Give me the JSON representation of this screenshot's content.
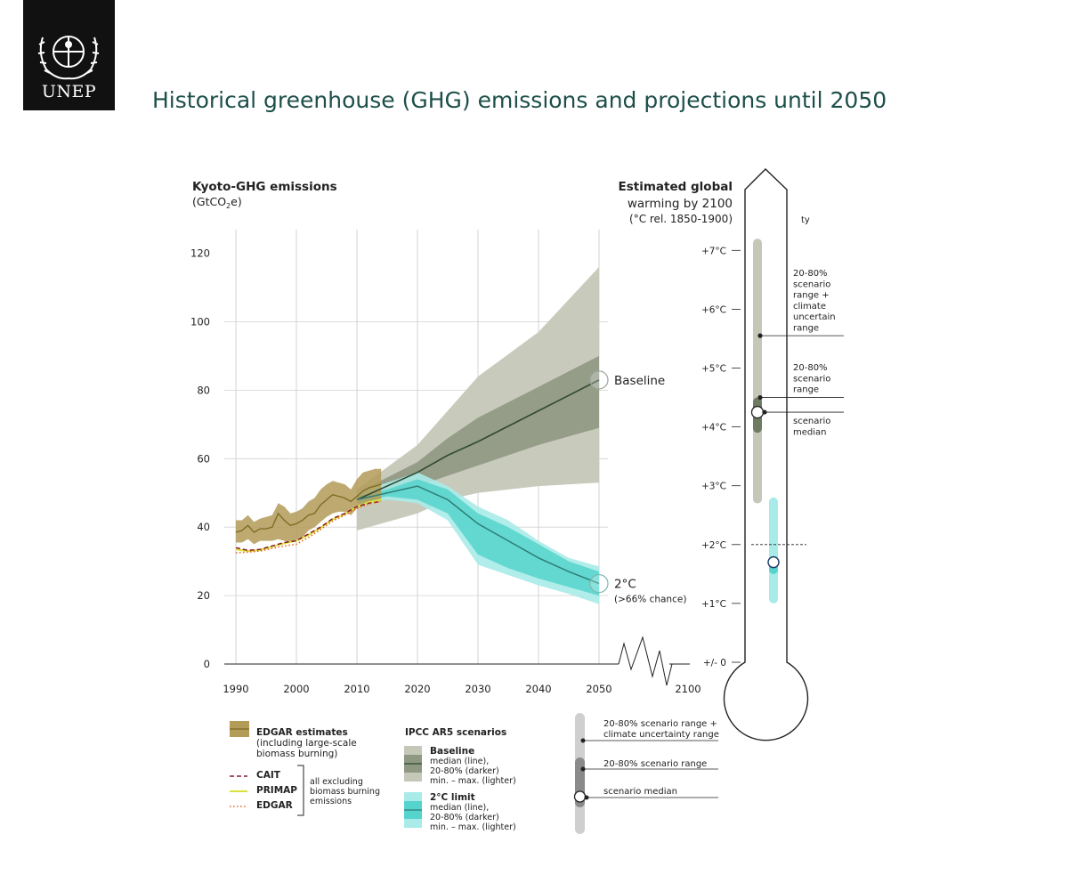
{
  "brand": {
    "logo_text": "UNEP"
  },
  "title": "Historical greenhouse (GHG) emissions and projections until 2050",
  "colors": {
    "title": "#1d4f4a",
    "edgar_band": "#b39b58",
    "edgar_line": "#7a6a22",
    "baseline_light": "#c5c8b8",
    "baseline_dark": "#8f9882",
    "baseline_line": "#2f4a33",
    "limit_light": "#a8ebe8",
    "limit_dark": "#55d3cd",
    "limit_line": "#2e7d74",
    "cait": "#8b1a2b",
    "primap": "#d8e23a",
    "edgar_dotted": "#e3671c"
  },
  "chart_data": {
    "type": "line",
    "ylabel": "Kyoto-GHG emissions",
    "yunit_prefix": "(GtCO",
    "yunit_sub": "2",
    "yunit_suffix": "e)",
    "ylim": [
      0,
      127
    ],
    "yticks": [
      0,
      20,
      40,
      60,
      80,
      100,
      120
    ],
    "xticks": [
      "1990",
      "2000",
      "2010",
      "2020",
      "2030",
      "2040",
      "2050",
      "2100"
    ],
    "xlim": [
      1990,
      2050
    ],
    "series": [
      {
        "name": "EDGAR estimates (including large-scale biomass burning)",
        "type": "band_with_line",
        "x": [
          1990,
          1991,
          1992,
          1993,
          1994,
          1995,
          1996,
          1997,
          1998,
          1999,
          2000,
          2001,
          2002,
          2003,
          2004,
          2005,
          2006,
          2007,
          2008,
          2009,
          2010,
          2011,
          2012,
          2013,
          2014
        ],
        "median": [
          38.5,
          39.0,
          40.5,
          38.5,
          39.5,
          39.5,
          40.0,
          44.0,
          42.0,
          40.5,
          41.0,
          42.0,
          43.5,
          44.0,
          46.5,
          48.0,
          49.5,
          49.0,
          48.5,
          47.5,
          49.0,
          50.5,
          51.5,
          52.0,
          52.5
        ],
        "low": [
          35.5,
          35.5,
          36.5,
          35.0,
          36.0,
          36.0,
          36.0,
          36.5,
          36.0,
          35.5,
          36.0,
          37.0,
          39.0,
          40.0,
          41.5,
          43.0,
          44.0,
          44.5,
          44.5,
          43.5,
          45.5,
          46.5,
          47.0,
          47.5,
          47.5
        ],
        "high": [
          42.0,
          42.0,
          43.5,
          41.5,
          42.5,
          43.0,
          43.5,
          47.0,
          46.0,
          44.0,
          44.5,
          45.5,
          47.5,
          48.5,
          51.0,
          52.5,
          53.5,
          53.0,
          52.5,
          51.0,
          54.0,
          56.0,
          56.5,
          57.0,
          57.0
        ]
      },
      {
        "name": "CAIT",
        "type": "dashed",
        "x": [
          1990,
          1992,
          1994,
          1996,
          1998,
          2000,
          2002,
          2004,
          2006,
          2008,
          2010,
          2012,
          2014
        ],
        "values": [
          34.0,
          33.2,
          33.5,
          34.5,
          35.5,
          36.0,
          38.0,
          40.0,
          42.5,
          44.0,
          46.0,
          47.0,
          47.5
        ]
      },
      {
        "name": "PRIMAP",
        "type": "solid",
        "x": [
          1990,
          1992,
          1994,
          1996,
          1998,
          2000,
          2002,
          2004,
          2006,
          2008,
          2010,
          2012,
          2014
        ],
        "values": [
          33.5,
          33.0,
          33.3,
          34.3,
          35.3,
          36.0,
          37.7,
          39.8,
          42.3,
          43.8,
          46.0,
          47.3,
          48.0
        ]
      },
      {
        "name": "EDGAR",
        "type": "dotted",
        "x": [
          1990,
          1992,
          1994,
          1996,
          1998,
          2000,
          2002,
          2004,
          2006,
          2008,
          2010,
          2012,
          2014
        ],
        "values": [
          32.5,
          32.7,
          33.0,
          33.8,
          34.5,
          35.0,
          37.0,
          39.3,
          41.8,
          43.5,
          45.5,
          46.8,
          47.5
        ]
      },
      {
        "name": "Baseline",
        "type": "scenario",
        "x": [
          2010,
          2020,
          2025,
          2030,
          2040,
          2050
        ],
        "median": [
          48,
          56,
          61,
          65,
          74,
          83
        ],
        "dark_low": [
          47,
          52,
          55,
          58,
          64,
          69
        ],
        "dark_high": [
          50,
          59,
          66,
          72,
          81,
          90
        ],
        "light_low": [
          39,
          44,
          48,
          50,
          52,
          53
        ],
        "light_high": [
          51,
          64,
          74,
          84,
          97,
          116
        ]
      },
      {
        "name": "2°C limit",
        "type": "scenario",
        "x": [
          2010,
          2015,
          2020,
          2025,
          2030,
          2035,
          2040,
          2045,
          2050
        ],
        "median": [
          48,
          50,
          52,
          48,
          41,
          36,
          31,
          27,
          23.5
        ],
        "dark_low": [
          47,
          49,
          48,
          44,
          32,
          28,
          25,
          22.5,
          20
        ],
        "dark_high": [
          49,
          51,
          54,
          51,
          44,
          40,
          35,
          30,
          27
        ],
        "light_low": [
          46,
          48,
          47,
          42,
          29,
          26,
          23,
          20.5,
          17.5
        ],
        "light_high": [
          50,
          53,
          56,
          52,
          46,
          42,
          36,
          31,
          28.5
        ]
      }
    ],
    "end_labels": [
      {
        "label": "Baseline",
        "value": 83
      },
      {
        "label": "2°C",
        "sublabel": "(>66% chance)",
        "value": 23.5
      }
    ]
  },
  "thermometer": {
    "title_line1": "Estimated global",
    "title_line2": "warming by 2100",
    "subtitle": "(°C rel. 1850-1900)",
    "stray_label": "ty",
    "ticks": [
      "+/- 0",
      "+1°C",
      "+2°C",
      "+3°C",
      "+4°C",
      "+5°C",
      "+6°C",
      "+7°C"
    ],
    "baseline": {
      "light_low": 2.7,
      "light_high": 7.2,
      "dark_low": 3.9,
      "dark_high": 4.5,
      "median": 4.25
    },
    "limit": {
      "light_low": 1.0,
      "light_high": 2.8,
      "dark_low": 1.5,
      "dark_high": 1.8,
      "median": 1.7
    },
    "threshold": 2.0,
    "annotations": [
      {
        "lines": [
          "20-80%",
          "scenario",
          "range +",
          "climate",
          "uncertain",
          "range"
        ]
      },
      {
        "lines": [
          "20-80%",
          "scenario",
          "range"
        ]
      },
      {
        "lines": [
          "scenario",
          "median"
        ]
      }
    ]
  },
  "legend": {
    "edgar_estimates": [
      "EDGAR estimates",
      "(including large-scale",
      "biomass burning)"
    ],
    "cait": "CAIT",
    "primap": "PRIMAP",
    "edgar": "EDGAR",
    "bracket_note": [
      "all excluding",
      "biomass burning",
      "emissions"
    ],
    "ipcc_title": "IPCC AR5 scenarios",
    "baseline_title": "Baseline",
    "baseline_desc": [
      "median (line),",
      "20-80% (darker)",
      "min. – max. (lighter)"
    ],
    "limit_title": "2°C limit",
    "limit_desc": [
      "median (line),",
      "20-80% (darker)",
      "min. – max. (lighter)"
    ],
    "range_key": [
      "20-80% scenario range +",
      "climate uncertainty range"
    ],
    "range_key2": "20-80% scenario range",
    "median_key": "scenario median"
  }
}
